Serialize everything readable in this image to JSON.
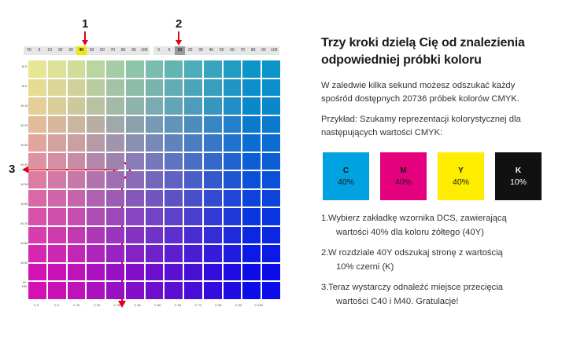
{
  "chart": {
    "step1": "1",
    "step2": "2",
    "step3": "3",
    "yellow_scale": [
      "Y0",
      "5",
      "10",
      "20",
      "30",
      "40",
      "50",
      "60",
      "70",
      "80",
      "90",
      "100"
    ],
    "black_scale": [
      "0",
      "5",
      "10",
      "20",
      "30",
      "40",
      "50",
      "60",
      "70",
      "80",
      "90",
      "100"
    ],
    "yellow_selected": "40",
    "black_selected": "10",
    "rows": [
      "M 0",
      "M 5",
      "M 10",
      "M 20",
      "M 30",
      "M 40",
      "M 50",
      "M 60",
      "M 70",
      "M 80",
      "M 90",
      "M 100"
    ],
    "cols": [
      "C 0",
      "C 5",
      "C 10",
      "C 20",
      "C 30",
      "C 40",
      "C 50",
      "C 60",
      "C 70",
      "C 80",
      "C 90",
      "C 100"
    ],
    "highlight_col": "C 40",
    "highlight_row": "M 40",
    "accent": "#e2001a"
  },
  "info": {
    "title_line1": "Trzy kroki dzielą Cię od znalezienia",
    "title_line2": "odpowiedniej próbki koloru",
    "intro_line1": "W zaledwie kilka sekund możesz odszukać każdy",
    "intro_line2": "spośród dostępnych 20736 próbek kolorów CMYK.",
    "example_line1": "Przykład: Szukamy reprezentacji kolorystycznej dla",
    "example_line2": "następujących wartości CMYK:",
    "swatches": [
      {
        "letter": "C",
        "value": "40%",
        "color": "#00a2e0",
        "text": "#1a1a1a"
      },
      {
        "letter": "M",
        "value": "40%",
        "color": "#e5007e",
        "text": "#1a1a1a"
      },
      {
        "letter": "Y",
        "value": "40%",
        "color": "#ffed00",
        "text": "#1a1a1a"
      },
      {
        "letter": "K",
        "value": "10%",
        "color": "#111111",
        "text": "#ffffff"
      }
    ],
    "steps": [
      {
        "n": "1.",
        "line1": "Wybierz zakładkę wzornika DCS, zawierającą",
        "line2": "wartości 40% dla koloru żółtego (40Y)"
      },
      {
        "n": "2.",
        "line1": "W rozdziale 40Y  odszukaj stronę z wartością",
        "line2": "10%  czerni (K)"
      },
      {
        "n": "3.",
        "line1": "Teraz wystarczy odnaleźć miejsce przecięcia",
        "line2": "wartości C40 i M40. Gratulacje!"
      }
    ]
  }
}
